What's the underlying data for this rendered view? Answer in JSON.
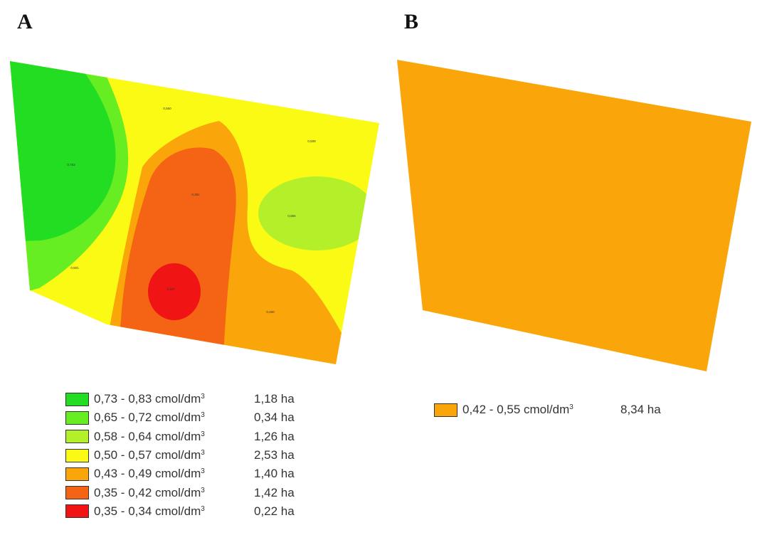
{
  "panels": [
    {
      "letter": "A",
      "zone_labels": [
        "0,753",
        "0,550",
        "0,509",
        "0,391",
        "0,584",
        "0,501",
        "0,327",
        "0,460"
      ],
      "legend": [
        {
          "range": "0,73 - 0,83 cmol/dm",
          "sup": "3",
          "area": "1,18 ha",
          "color": "#22dd22"
        },
        {
          "range": "0,65 - 0,72 cmol/dm",
          "sup": "3",
          "area": "0,34 ha",
          "color": "#66ee22"
        },
        {
          "range": "0,58 - 0,64 cmol/dm",
          "sup": "3",
          "area": "1,26 ha",
          "color": "#b4f02a"
        },
        {
          "range": "0,50 - 0,57 cmol/dm",
          "sup": "3",
          "area": "2,53 ha",
          "color": "#fafa14"
        },
        {
          "range": "0,43 - 0,49 cmol/dm",
          "sup": "3",
          "area": "1,40 ha",
          "color": "#faa50a"
        },
        {
          "range": "0,35 - 0,42 cmol/dm",
          "sup": "3",
          "area": "1,42 ha",
          "color": "#f56414"
        },
        {
          "range": "0,35 - 0,34 cmol/dm",
          "sup": "3",
          "area": "0,22 ha",
          "color": "#f01414"
        }
      ]
    },
    {
      "letter": "B",
      "legend": [
        {
          "range": "0,42 - 0,55 cmol/dm",
          "sup": "3",
          "area": "8,34 ha",
          "color": "#faa50a"
        }
      ]
    }
  ]
}
